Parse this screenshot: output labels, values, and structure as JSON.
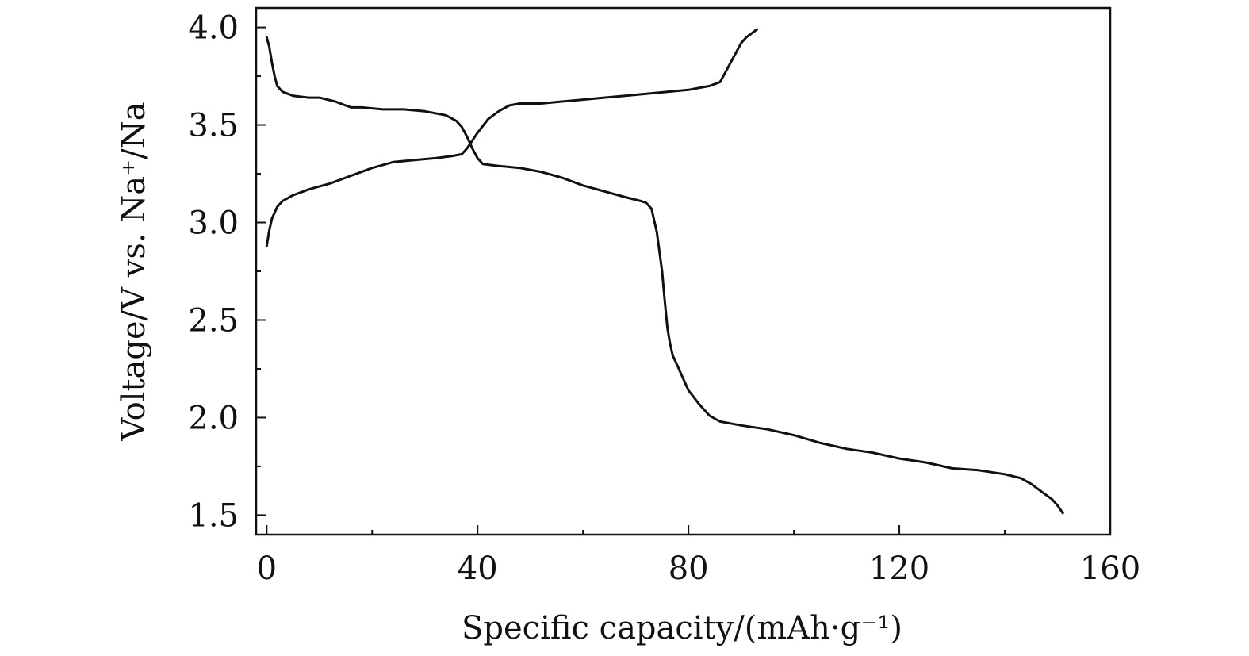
{
  "chart_data": {
    "type": "line",
    "xlabel": "Specific capacity/(mAh·g⁻¹)",
    "ylabel": "Voltage/V vs. Na⁺/Na",
    "xlim": [
      -2,
      160
    ],
    "ylim": [
      1.4,
      4.1
    ],
    "xticks": [
      0,
      40,
      80,
      120,
      160
    ],
    "xtick_labels": [
      "0",
      "40",
      "80",
      "120",
      "160"
    ],
    "yticks": [
      1.5,
      2.0,
      2.5,
      3.0,
      3.5,
      4.0
    ],
    "ytick_labels": [
      "1.5",
      "2.0",
      "2.5",
      "3.0",
      "3.5",
      "4.0"
    ],
    "grid": false,
    "series": [
      {
        "x": [
          0,
          0.5,
          1,
          2,
          3,
          5,
          8,
          12,
          16,
          20,
          24,
          28,
          32,
          35,
          37,
          38,
          39,
          40,
          42,
          44,
          46,
          48,
          52,
          56,
          60,
          64,
          68,
          72,
          76,
          80,
          84,
          86,
          87,
          88,
          89,
          90,
          91,
          92,
          93
        ],
        "y": [
          2.88,
          2.96,
          3.02,
          3.08,
          3.11,
          3.14,
          3.17,
          3.2,
          3.24,
          3.28,
          3.31,
          3.32,
          3.33,
          3.34,
          3.35,
          3.38,
          3.42,
          3.46,
          3.53,
          3.57,
          3.6,
          3.61,
          3.61,
          3.62,
          3.63,
          3.64,
          3.65,
          3.66,
          3.67,
          3.68,
          3.7,
          3.72,
          3.77,
          3.82,
          3.87,
          3.92,
          3.95,
          3.97,
          3.99
        ]
      },
      {
        "x": [
          0,
          0.5,
          1,
          1.5,
          2,
          3,
          5,
          8,
          10,
          13,
          15,
          16,
          18,
          22,
          26,
          30,
          34,
          36,
          37,
          38,
          39,
          40,
          41,
          44,
          48,
          52,
          56,
          60,
          64,
          68,
          71,
          72,
          73,
          74,
          75,
          75.5,
          76,
          76.5,
          77,
          78,
          79,
          80,
          82,
          84,
          86,
          88,
          90,
          95,
          100,
          105,
          110,
          115,
          120,
          125,
          130,
          135,
          140,
          143,
          145,
          147,
          149,
          150,
          151
        ],
        "y": [
          3.95,
          3.9,
          3.82,
          3.75,
          3.7,
          3.67,
          3.65,
          3.64,
          3.64,
          3.62,
          3.6,
          3.59,
          3.59,
          3.58,
          3.58,
          3.57,
          3.55,
          3.52,
          3.49,
          3.44,
          3.38,
          3.33,
          3.3,
          3.29,
          3.28,
          3.26,
          3.23,
          3.19,
          3.16,
          3.13,
          3.11,
          3.1,
          3.07,
          2.95,
          2.75,
          2.6,
          2.46,
          2.38,
          2.32,
          2.26,
          2.2,
          2.14,
          2.07,
          2.01,
          1.98,
          1.97,
          1.96,
          1.94,
          1.91,
          1.87,
          1.84,
          1.82,
          1.79,
          1.77,
          1.74,
          1.73,
          1.71,
          1.69,
          1.66,
          1.62,
          1.58,
          1.55,
          1.51
        ]
      }
    ]
  }
}
